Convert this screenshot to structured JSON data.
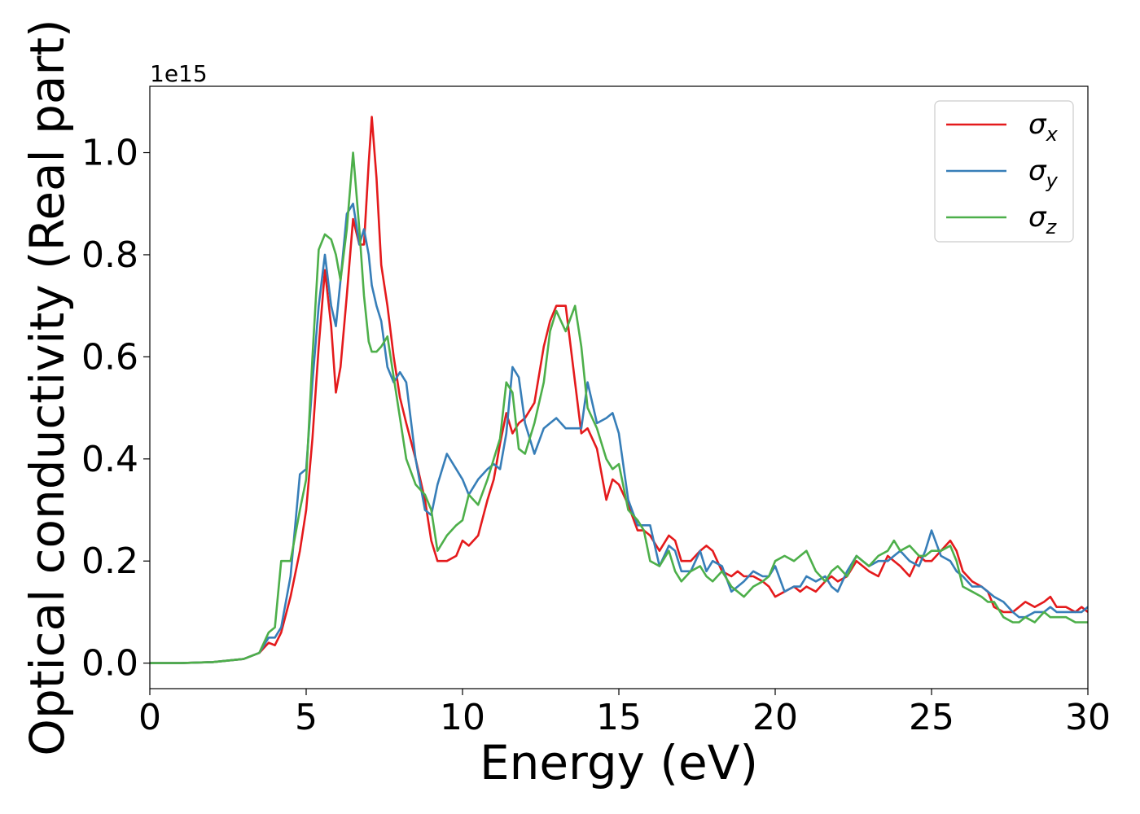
{
  "chart_data": {
    "type": "line",
    "xlabel": "Energy (eV)",
    "ylabel": "Optical conductivity (Real part)",
    "y_offset_label": "1e15",
    "xlim": [
      0,
      30
    ],
    "ylim": [
      -0.05,
      1.13
    ],
    "x_ticks": [
      0,
      5,
      10,
      15,
      20,
      25,
      30
    ],
    "y_ticks": [
      0.0,
      0.2,
      0.4,
      0.6,
      0.8,
      1.0
    ],
    "x_tick_labels": [
      "0",
      "5",
      "10",
      "15",
      "20",
      "25",
      "30"
    ],
    "y_tick_labels": [
      "0.0",
      "0.2",
      "0.4",
      "0.6",
      "0.8",
      "1.0"
    ],
    "grid": false,
    "legend_position": "top-right",
    "series": [
      {
        "name": "σx",
        "symbol": "σ",
        "subscript": "x",
        "color": "#e41a1c",
        "x": [
          0,
          1,
          2,
          3,
          3.5,
          3.8,
          4.0,
          4.2,
          4.5,
          4.8,
          5.0,
          5.2,
          5.4,
          5.6,
          5.8,
          5.95,
          6.1,
          6.3,
          6.5,
          6.7,
          6.85,
          7.0,
          7.1,
          7.25,
          7.4,
          7.6,
          7.8,
          8.0,
          8.2,
          8.5,
          8.8,
          9.0,
          9.2,
          9.5,
          9.8,
          10.0,
          10.2,
          10.5,
          10.8,
          11.0,
          11.2,
          11.4,
          11.6,
          11.8,
          12.0,
          12.3,
          12.6,
          12.8,
          13.0,
          13.3,
          13.6,
          13.8,
          14.0,
          14.3,
          14.6,
          14.8,
          15.0,
          15.3,
          15.6,
          15.8,
          16.0,
          16.3,
          16.6,
          16.8,
          17.0,
          17.3,
          17.6,
          17.8,
          18.0,
          18.3,
          18.6,
          18.8,
          19.0,
          19.3,
          19.6,
          19.8,
          20.0,
          20.3,
          20.6,
          20.8,
          21.0,
          21.3,
          21.6,
          21.8,
          22.0,
          22.3,
          22.6,
          22.8,
          23.0,
          23.3,
          23.6,
          23.8,
          24.0,
          24.3,
          24.6,
          24.8,
          25.0,
          25.3,
          25.6,
          25.8,
          26.0,
          26.3,
          26.6,
          26.8,
          27.0,
          27.3,
          27.6,
          27.8,
          28.0,
          28.3,
          28.6,
          28.8,
          29.0,
          29.3,
          29.6,
          29.8,
          30.0
        ],
        "y": [
          0,
          0,
          0.002,
          0.008,
          0.02,
          0.04,
          0.035,
          0.06,
          0.13,
          0.22,
          0.3,
          0.44,
          0.62,
          0.77,
          0.66,
          0.53,
          0.58,
          0.72,
          0.87,
          0.82,
          0.82,
          0.98,
          1.07,
          0.95,
          0.78,
          0.7,
          0.6,
          0.52,
          0.47,
          0.4,
          0.32,
          0.24,
          0.2,
          0.2,
          0.21,
          0.24,
          0.23,
          0.25,
          0.32,
          0.36,
          0.43,
          0.49,
          0.45,
          0.47,
          0.48,
          0.51,
          0.62,
          0.67,
          0.7,
          0.7,
          0.55,
          0.45,
          0.46,
          0.42,
          0.32,
          0.36,
          0.35,
          0.31,
          0.26,
          0.26,
          0.25,
          0.22,
          0.25,
          0.24,
          0.2,
          0.2,
          0.22,
          0.23,
          0.22,
          0.18,
          0.17,
          0.18,
          0.17,
          0.17,
          0.16,
          0.15,
          0.13,
          0.14,
          0.15,
          0.14,
          0.15,
          0.14,
          0.16,
          0.17,
          0.16,
          0.17,
          0.2,
          0.19,
          0.18,
          0.17,
          0.21,
          0.2,
          0.19,
          0.17,
          0.21,
          0.2,
          0.2,
          0.22,
          0.24,
          0.22,
          0.18,
          0.16,
          0.15,
          0.14,
          0.11,
          0.1,
          0.1,
          0.11,
          0.12,
          0.11,
          0.12,
          0.13,
          0.11,
          0.11,
          0.1,
          0.11,
          0.1
        ]
      },
      {
        "name": "σy",
        "symbol": "σ",
        "subscript": "y",
        "color": "#377eb8",
        "x": [
          0,
          1,
          2,
          3,
          3.5,
          3.8,
          4.0,
          4.2,
          4.5,
          4.8,
          5.0,
          5.2,
          5.4,
          5.6,
          5.8,
          5.95,
          6.1,
          6.3,
          6.5,
          6.7,
          6.85,
          7.0,
          7.1,
          7.25,
          7.4,
          7.6,
          7.8,
          8.0,
          8.2,
          8.5,
          8.8,
          9.0,
          9.2,
          9.5,
          9.8,
          10.0,
          10.2,
          10.5,
          10.8,
          11.0,
          11.2,
          11.4,
          11.6,
          11.8,
          12.0,
          12.3,
          12.6,
          12.8,
          13.0,
          13.3,
          13.6,
          13.8,
          14.0,
          14.3,
          14.6,
          14.8,
          15.0,
          15.3,
          15.6,
          15.8,
          16.0,
          16.3,
          16.6,
          16.8,
          17.0,
          17.3,
          17.6,
          17.8,
          18.0,
          18.3,
          18.6,
          18.8,
          19.0,
          19.3,
          19.6,
          19.8,
          20.0,
          20.3,
          20.6,
          20.8,
          21.0,
          21.3,
          21.6,
          21.8,
          22.0,
          22.3,
          22.6,
          22.8,
          23.0,
          23.3,
          23.6,
          23.8,
          24.0,
          24.3,
          24.6,
          24.8,
          25.0,
          25.3,
          25.6,
          25.8,
          26.0,
          26.3,
          26.6,
          26.8,
          27.0,
          27.3,
          27.6,
          27.8,
          28.0,
          28.3,
          28.6,
          28.8,
          29.0,
          29.3,
          29.6,
          29.8,
          30.0
        ],
        "y": [
          0,
          0,
          0.002,
          0.008,
          0.02,
          0.05,
          0.05,
          0.07,
          0.17,
          0.37,
          0.38,
          0.55,
          0.7,
          0.8,
          0.7,
          0.66,
          0.75,
          0.88,
          0.9,
          0.82,
          0.85,
          0.8,
          0.74,
          0.7,
          0.67,
          0.58,
          0.55,
          0.57,
          0.55,
          0.4,
          0.3,
          0.29,
          0.35,
          0.41,
          0.38,
          0.36,
          0.33,
          0.36,
          0.38,
          0.39,
          0.38,
          0.45,
          0.58,
          0.56,
          0.47,
          0.41,
          0.46,
          0.47,
          0.48,
          0.46,
          0.46,
          0.46,
          0.55,
          0.47,
          0.48,
          0.49,
          0.45,
          0.32,
          0.27,
          0.27,
          0.27,
          0.19,
          0.23,
          0.22,
          0.18,
          0.18,
          0.22,
          0.18,
          0.2,
          0.19,
          0.14,
          0.15,
          0.16,
          0.18,
          0.17,
          0.17,
          0.19,
          0.14,
          0.15,
          0.15,
          0.17,
          0.16,
          0.17,
          0.15,
          0.14,
          0.18,
          0.21,
          0.2,
          0.19,
          0.2,
          0.2,
          0.21,
          0.22,
          0.2,
          0.19,
          0.22,
          0.26,
          0.21,
          0.2,
          0.18,
          0.17,
          0.15,
          0.15,
          0.14,
          0.13,
          0.12,
          0.1,
          0.09,
          0.09,
          0.1,
          0.1,
          0.11,
          0.1,
          0.1,
          0.1,
          0.1,
          0.11
        ]
      },
      {
        "name": "σz",
        "symbol": "σ",
        "subscript": "z",
        "color": "#4daf4a",
        "x": [
          0,
          1,
          2,
          3,
          3.5,
          3.8,
          4.0,
          4.2,
          4.5,
          4.8,
          5.0,
          5.2,
          5.4,
          5.6,
          5.8,
          5.95,
          6.1,
          6.3,
          6.5,
          6.7,
          6.85,
          7.0,
          7.1,
          7.25,
          7.4,
          7.6,
          7.8,
          8.0,
          8.2,
          8.5,
          8.8,
          9.0,
          9.2,
          9.5,
          9.8,
          10.0,
          10.2,
          10.5,
          10.8,
          11.0,
          11.2,
          11.4,
          11.6,
          11.8,
          12.0,
          12.3,
          12.6,
          12.8,
          13.0,
          13.3,
          13.6,
          13.8,
          14.0,
          14.3,
          14.6,
          14.8,
          15.0,
          15.3,
          15.6,
          15.8,
          16.0,
          16.3,
          16.6,
          16.8,
          17.0,
          17.3,
          17.6,
          17.8,
          18.0,
          18.3,
          18.6,
          18.8,
          19.0,
          19.3,
          19.6,
          19.8,
          20.0,
          20.3,
          20.6,
          20.8,
          21.0,
          21.3,
          21.6,
          21.8,
          22.0,
          22.3,
          22.6,
          22.8,
          23.0,
          23.3,
          23.6,
          23.8,
          24.0,
          24.3,
          24.6,
          24.8,
          25.0,
          25.3,
          25.6,
          25.8,
          26.0,
          26.3,
          26.6,
          26.8,
          27.0,
          27.3,
          27.6,
          27.8,
          28.0,
          28.3,
          28.6,
          28.8,
          29.0,
          29.3,
          29.6,
          29.8,
          30.0
        ],
        "y": [
          0,
          0,
          0.002,
          0.008,
          0.02,
          0.06,
          0.07,
          0.2,
          0.2,
          0.3,
          0.36,
          0.6,
          0.81,
          0.84,
          0.83,
          0.8,
          0.75,
          0.85,
          1.0,
          0.85,
          0.72,
          0.63,
          0.61,
          0.61,
          0.62,
          0.64,
          0.56,
          0.48,
          0.4,
          0.35,
          0.33,
          0.3,
          0.22,
          0.25,
          0.27,
          0.28,
          0.33,
          0.31,
          0.36,
          0.4,
          0.44,
          0.55,
          0.53,
          0.42,
          0.41,
          0.47,
          0.55,
          0.65,
          0.69,
          0.65,
          0.7,
          0.62,
          0.5,
          0.46,
          0.4,
          0.38,
          0.39,
          0.3,
          0.28,
          0.26,
          0.2,
          0.19,
          0.22,
          0.18,
          0.16,
          0.18,
          0.19,
          0.17,
          0.16,
          0.18,
          0.15,
          0.14,
          0.13,
          0.15,
          0.16,
          0.17,
          0.2,
          0.21,
          0.2,
          0.21,
          0.22,
          0.18,
          0.16,
          0.18,
          0.19,
          0.17,
          0.21,
          0.2,
          0.19,
          0.21,
          0.22,
          0.24,
          0.22,
          0.23,
          0.21,
          0.21,
          0.22,
          0.22,
          0.23,
          0.2,
          0.15,
          0.14,
          0.13,
          0.12,
          0.12,
          0.09,
          0.08,
          0.08,
          0.09,
          0.08,
          0.1,
          0.09,
          0.09,
          0.09,
          0.08,
          0.08,
          0.08
        ]
      }
    ]
  }
}
